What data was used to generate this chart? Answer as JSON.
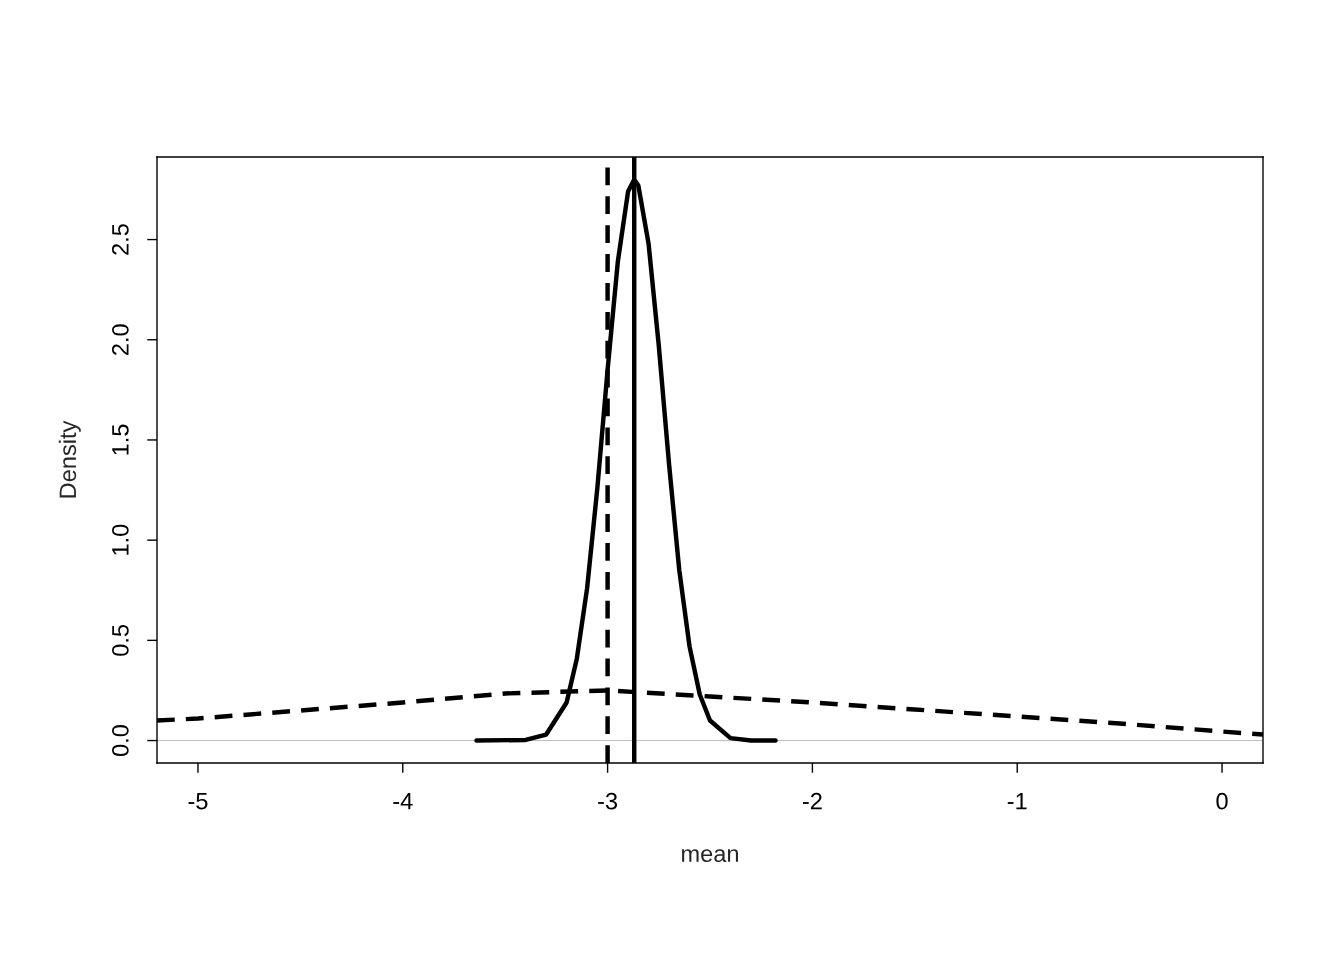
{
  "chart_data": {
    "type": "line",
    "xlabel": "mean",
    "ylabel": "Density",
    "xlim": [
      -5.2,
      0.2
    ],
    "ylim": [
      -0.112,
      2.912
    ],
    "xticks": [
      -5,
      -4,
      -3,
      -2,
      -1,
      0
    ],
    "yticks": [
      {
        "value": 0,
        "label": "0.0"
      },
      {
        "value": 0.5,
        "label": "0.5"
      },
      {
        "value": 1,
        "label": "1.0"
      },
      {
        "value": 1.5,
        "label": "1.5"
      },
      {
        "value": 2,
        "label": "2.0"
      },
      {
        "value": 2.5,
        "label": "2.5"
      }
    ],
    "grid": false,
    "marker": "none",
    "series": [
      {
        "color": "#000000",
        "line_style": "dashed",
        "x": [
          -5.2,
          -5,
          -4.5,
          -4,
          -3.5,
          -3,
          -2.5,
          -2,
          -1.5,
          -1,
          -0.5,
          0,
          0.2
        ],
        "values": [
          0.1,
          0.11,
          0.15,
          0.19,
          0.235,
          0.25,
          0.22,
          0.19,
          0.155,
          0.12,
          0.085,
          0.045,
          0.03
        ]
      },
      {
        "color": "#000000",
        "line_style": "solid",
        "x": [
          -3.64,
          -3.4,
          -3.3,
          -3.2,
          -3.15,
          -3.1,
          -3.05,
          -3.0,
          -2.95,
          -2.9,
          -2.87,
          -2.85,
          -2.8,
          -2.75,
          -2.7,
          -2.65,
          -2.6,
          -2.55,
          -2.5,
          -2.4,
          -2.3,
          -2.18
        ],
        "values": [
          0,
          0.003,
          0.03,
          0.19,
          0.41,
          0.76,
          1.26,
          1.85,
          2.39,
          2.74,
          2.8,
          2.77,
          2.48,
          1.97,
          1.38,
          0.85,
          0.47,
          0.23,
          0.1,
          0.012,
          0,
          0
        ]
      }
    ],
    "ref_lines": [
      {
        "axis": "y",
        "value": 0,
        "color": "#bebebe",
        "line_style": "solid"
      },
      {
        "axis": "x",
        "value": -3,
        "color": "#000000",
        "line_style": "dashed"
      },
      {
        "axis": "x",
        "value": -2.87,
        "color": "#000000",
        "line_style": "solid"
      }
    ]
  }
}
